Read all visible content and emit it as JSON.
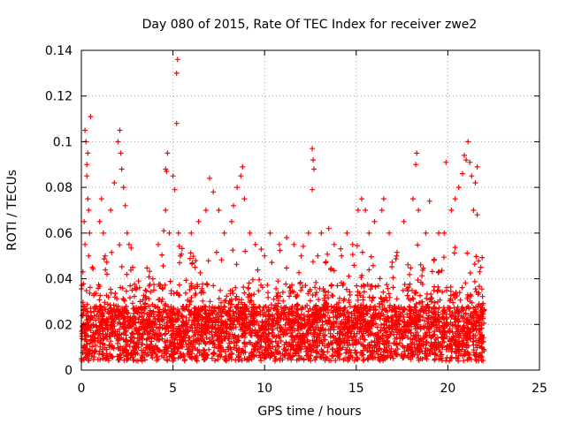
{
  "chart_data": {
    "type": "scatter",
    "title": "Day 080 of 2015, Rate Of TEC Index for receiver zwe2",
    "xlabel": "GPS time / hours",
    "ylabel": "ROTI / TECUs",
    "xlim": [
      0,
      25
    ],
    "ylim": [
      0,
      0.14
    ],
    "x_ticks": [
      "0",
      "5",
      "10",
      "15",
      "20",
      "25"
    ],
    "y_ticks": [
      "0",
      "0.02",
      "0.04",
      "0.06",
      "0.08",
      "0.1",
      "0.12",
      "0.14"
    ],
    "grid": true,
    "legend": "none",
    "marker": "plus",
    "color": "#ff0000",
    "data_x_range": [
      0,
      22
    ],
    "series": [
      {
        "points": [
          [
            0.0,
            0.005
          ],
          [
            0.1,
            0.018
          ],
          [
            0.2,
            0.105
          ],
          [
            0.25,
            0.1
          ],
          [
            0.3,
            0.09
          ],
          [
            0.3,
            0.085
          ],
          [
            0.35,
            0.075
          ],
          [
            0.4,
            0.07
          ],
          [
            0.45,
            0.06
          ],
          [
            0.5,
            0.111
          ],
          [
            0.4,
            0.05
          ],
          [
            0.6,
            0.045
          ],
          [
            0.2,
            0.055
          ],
          [
            0.15,
            0.065
          ],
          [
            0.35,
            0.095
          ],
          [
            1.0,
            0.065
          ],
          [
            1.1,
            0.075
          ],
          [
            1.2,
            0.06
          ],
          [
            1.3,
            0.05
          ],
          [
            1.4,
            0.042
          ],
          [
            1.6,
            0.07
          ],
          [
            1.8,
            0.082
          ],
          [
            2.0,
            0.1
          ],
          [
            2.1,
            0.105
          ],
          [
            2.15,
            0.095
          ],
          [
            2.2,
            0.088
          ],
          [
            2.3,
            0.08
          ],
          [
            2.4,
            0.072
          ],
          [
            2.5,
            0.06
          ],
          [
            2.6,
            0.055
          ],
          [
            2.8,
            0.045
          ],
          [
            3.2,
            0.03
          ],
          [
            3.5,
            0.035
          ],
          [
            3.9,
            0.04
          ],
          [
            4.2,
            0.055
          ],
          [
            4.5,
            0.061
          ],
          [
            4.6,
            0.088
          ],
          [
            4.65,
            0.087
          ],
          [
            4.7,
            0.095
          ],
          [
            4.6,
            0.07
          ],
          [
            4.8,
            0.06
          ],
          [
            5.0,
            0.085
          ],
          [
            5.1,
            0.079
          ],
          [
            5.2,
            0.108
          ],
          [
            5.25,
            0.136
          ],
          [
            5.2,
            0.13
          ],
          [
            5.3,
            0.06
          ],
          [
            5.4,
            0.05
          ],
          [
            6.0,
            0.06
          ],
          [
            6.2,
            0.045
          ],
          [
            6.4,
            0.065
          ],
          [
            6.8,
            0.07
          ],
          [
            7.0,
            0.084
          ],
          [
            7.2,
            0.078
          ],
          [
            7.5,
            0.07
          ],
          [
            7.8,
            0.06
          ],
          [
            8.2,
            0.065
          ],
          [
            8.3,
            0.072
          ],
          [
            8.5,
            0.08
          ],
          [
            8.7,
            0.085
          ],
          [
            8.8,
            0.089
          ],
          [
            8.9,
            0.075
          ],
          [
            9.2,
            0.06
          ],
          [
            9.5,
            0.055
          ],
          [
            10.0,
            0.05
          ],
          [
            10.3,
            0.06
          ],
          [
            10.8,
            0.055
          ],
          [
            11.2,
            0.058
          ],
          [
            11.6,
            0.055
          ],
          [
            12.0,
            0.05
          ],
          [
            12.4,
            0.06
          ],
          [
            12.6,
            0.097
          ],
          [
            12.65,
            0.092
          ],
          [
            12.7,
            0.088
          ],
          [
            12.6,
            0.079
          ],
          [
            12.9,
            0.05
          ],
          [
            13.1,
            0.06
          ],
          [
            13.5,
            0.062
          ],
          [
            13.8,
            0.055
          ],
          [
            14.2,
            0.05
          ],
          [
            14.5,
            0.06
          ],
          [
            14.8,
            0.055
          ],
          [
            15.1,
            0.07
          ],
          [
            15.3,
            0.075
          ],
          [
            15.5,
            0.07
          ],
          [
            15.7,
            0.06
          ],
          [
            16.0,
            0.065
          ],
          [
            16.4,
            0.07
          ],
          [
            16.5,
            0.075
          ],
          [
            16.8,
            0.06
          ],
          [
            17.2,
            0.05
          ],
          [
            17.6,
            0.065
          ],
          [
            18.1,
            0.075
          ],
          [
            18.3,
            0.095
          ],
          [
            18.25,
            0.09
          ],
          [
            18.4,
            0.07
          ],
          [
            18.8,
            0.06
          ],
          [
            19.0,
            0.074
          ],
          [
            19.5,
            0.06
          ],
          [
            19.8,
            0.06
          ],
          [
            19.9,
            0.091
          ],
          [
            20.2,
            0.07
          ],
          [
            20.4,
            0.075
          ],
          [
            20.6,
            0.08
          ],
          [
            20.8,
            0.086
          ],
          [
            20.9,
            0.094
          ],
          [
            21.0,
            0.092
          ],
          [
            21.1,
            0.1
          ],
          [
            21.2,
            0.091
          ],
          [
            21.3,
            0.085
          ],
          [
            21.5,
            0.082
          ],
          [
            21.6,
            0.089
          ],
          [
            21.4,
            0.07
          ],
          [
            21.6,
            0.068
          ],
          [
            21.8,
            0.045
          ]
        ]
      }
    ]
  }
}
